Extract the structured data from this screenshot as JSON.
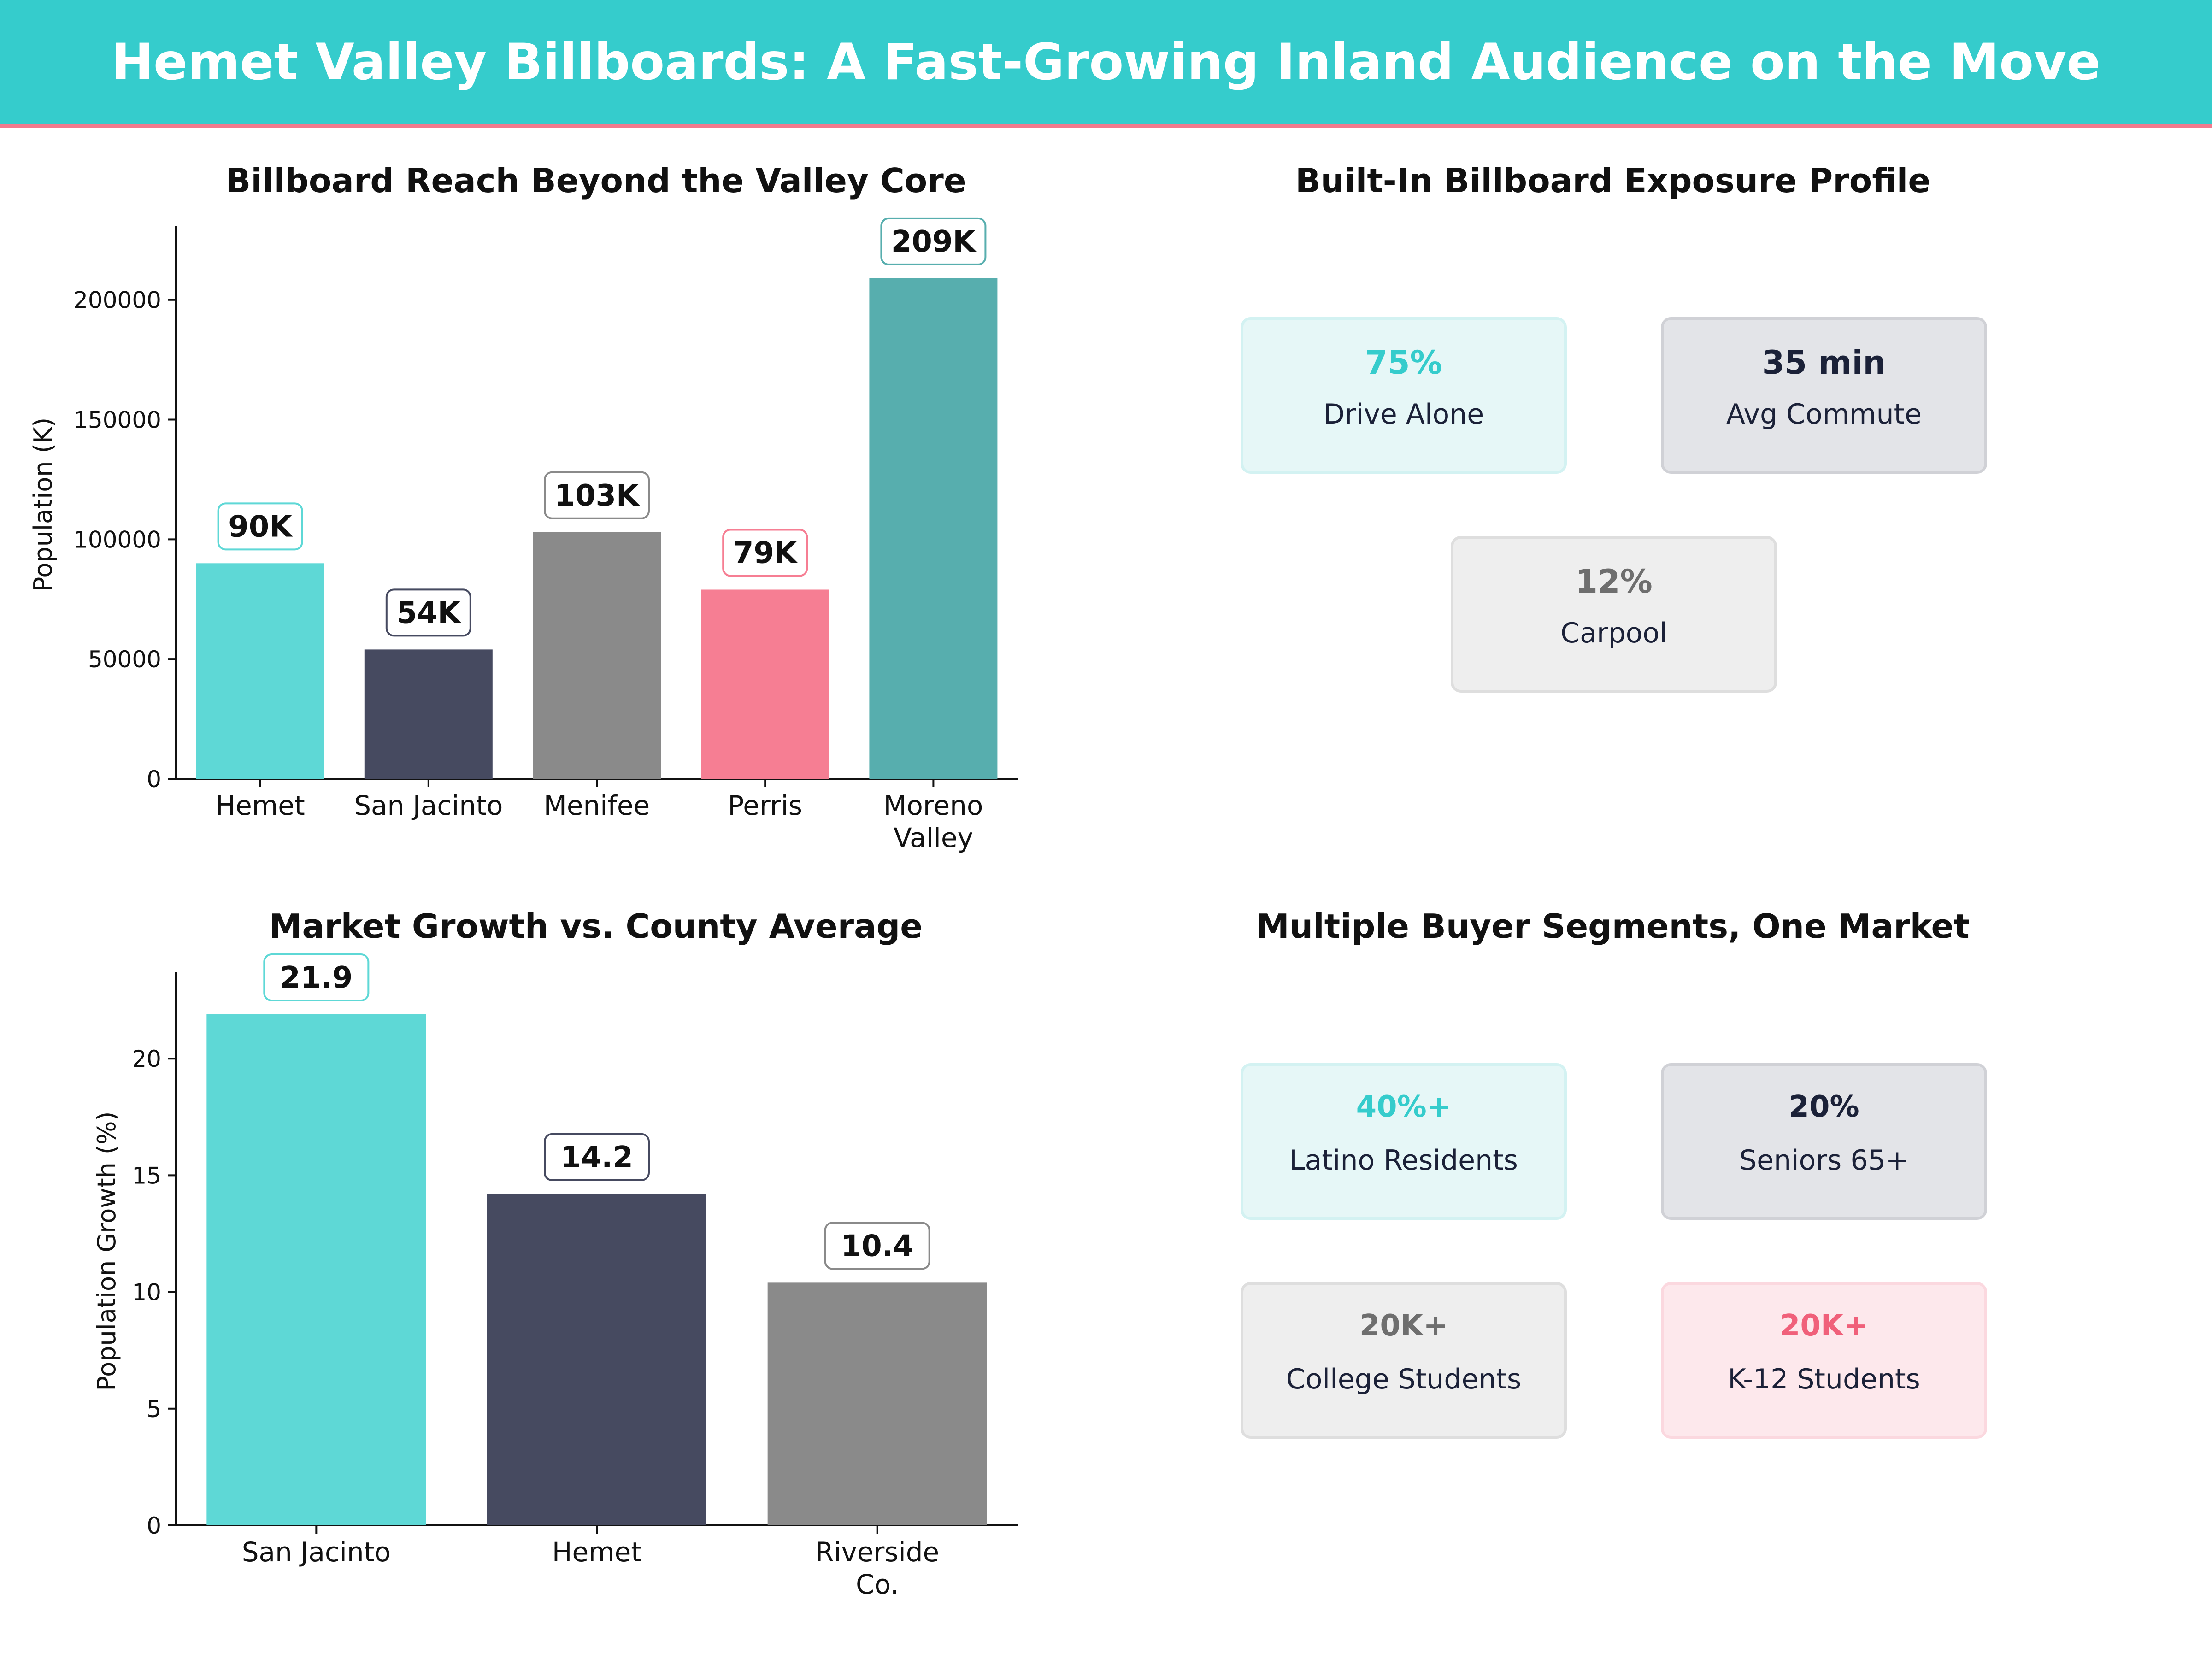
{
  "title": "Hemet Valley Billboards: A Fast-Growing Inland Audience on the Move",
  "colors": {
    "teal": "#5ED8D6",
    "navy": "#464A60",
    "gray": "#8A8A8A",
    "pink": "#F67E93",
    "darkteal": "#57AEAE",
    "banner": "#35CCCC"
  },
  "chart_data": [
    {
      "type": "bar",
      "title": "Billboard Reach Beyond the Valley Core",
      "ylabel": "Population (K)",
      "xlabel": "",
      "categories": [
        "Hemet",
        "San Jacinto",
        "Menifee",
        "Perris",
        "Moreno Valley"
      ],
      "values": [
        90000,
        54000,
        103000,
        79000,
        209000
      ],
      "labels": [
        "90K",
        "54K",
        "103K",
        "79K",
        "209K"
      ],
      "yticks": [
        0,
        50000,
        100000,
        150000,
        200000
      ],
      "ylim": [
        0,
        229000
      ],
      "grid": false
    },
    {
      "type": "bar",
      "title": "Market Growth vs. County Average",
      "ylabel": "Population Growth (%)",
      "xlabel": "",
      "categories": [
        "San Jacinto",
        "Hemet",
        "Riverside Co."
      ],
      "values": [
        21.9,
        14.2,
        10.4
      ],
      "labels": [
        "21.9",
        "14.2",
        "10.4"
      ],
      "yticks": [
        0,
        5,
        10,
        15,
        20
      ],
      "ylim": [
        0,
        23.5
      ],
      "grid": false
    }
  ],
  "exposure": {
    "title": "Built-In Billboard Exposure Profile",
    "cards": [
      {
        "value": "75%",
        "label": "Drive Alone"
      },
      {
        "value": "35 min",
        "label": "Avg Commute"
      },
      {
        "value": "12%",
        "label": "Carpool"
      }
    ]
  },
  "segments": {
    "title": "Multiple Buyer Segments, One Market",
    "cards": [
      {
        "value": "40%+",
        "label": "Latino Residents"
      },
      {
        "value": "20%",
        "label": "Seniors 65+"
      },
      {
        "value": "20K+",
        "label": "College Students"
      },
      {
        "value": "20K+",
        "label": "K-12 Students"
      }
    ]
  }
}
